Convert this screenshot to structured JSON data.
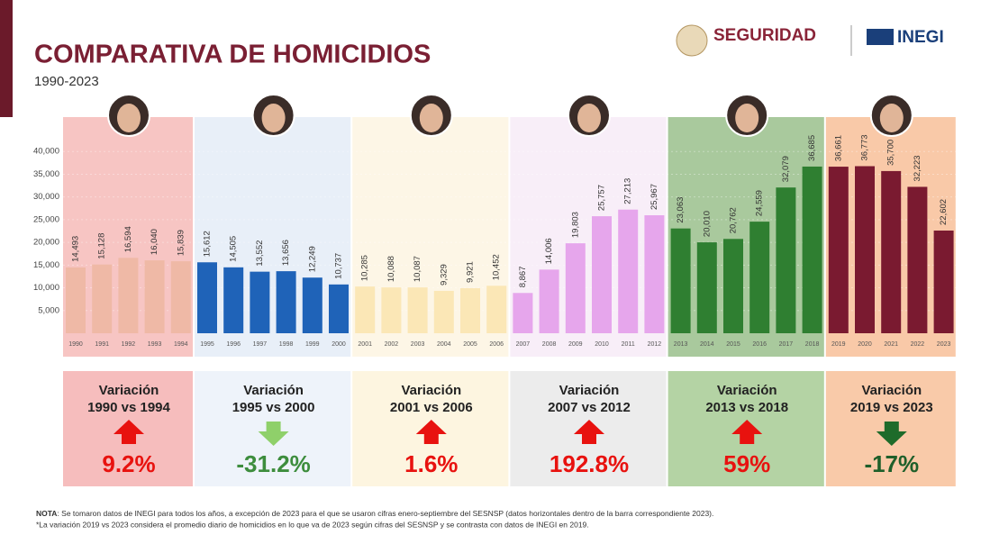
{
  "logos": [
    "SEGURIDAD",
    "INEGI"
  ],
  "chart_data": {
    "type": "bar",
    "title": "COMPARATIVA DE HOMICIDIOS",
    "subtitle": "1990-2023",
    "ylim": [
      0,
      45000
    ],
    "yticks": [
      {
        "value": 5000,
        "label": "5,000"
      },
      {
        "value": 10000,
        "label": "10,000"
      },
      {
        "value": 15000,
        "label": "15,000"
      },
      {
        "value": 20000,
        "label": "20,000"
      },
      {
        "value": 25000,
        "label": "25,000"
      },
      {
        "value": 30000,
        "label": "30,000"
      },
      {
        "value": 35000,
        "label": "35,000"
      },
      {
        "value": 40000,
        "label": "40,000"
      }
    ],
    "grid": true,
    "groups": [
      {
        "categories": [
          "1990",
          "1991",
          "1992",
          "1993",
          "1994"
        ],
        "values": [
          14493,
          15128,
          16594,
          16040,
          15839
        ],
        "value_labels": [
          "14,493",
          "15,128",
          "16,594",
          "16,040",
          "15,839"
        ],
        "color": "#efb9a6",
        "band_color": "#f7c5c3",
        "variation": {
          "title": "Variación",
          "range": "1990 vs 1994",
          "value": 9.2,
          "label": "9.2%",
          "arrow_color": "#e8120f",
          "text_color": "#e8120f",
          "box_color": "#f6bdbd"
        }
      },
      {
        "categories": [
          "1995",
          "1996",
          "1997",
          "1998",
          "1999",
          "2000"
        ],
        "values": [
          15612,
          14505,
          13552,
          13656,
          12249,
          10737
        ],
        "value_labels": [
          "15,612",
          "14,505",
          "13,552",
          "13,656",
          "12,249",
          "10,737"
        ],
        "color": "#1f63b8",
        "band_color": "#e8eff8",
        "variation": {
          "title": "Variación",
          "range": "1995 vs 2000",
          "value": -31.2,
          "label": "-31.2%",
          "arrow_color": "#8fd06a",
          "text_color": "#3d8d3d",
          "box_color": "#eef3fa"
        }
      },
      {
        "categories": [
          "2001",
          "2002",
          "2003",
          "2004",
          "2005",
          "2006"
        ],
        "values": [
          10285,
          10088,
          10087,
          9329,
          9921,
          10452
        ],
        "value_labels": [
          "10,285",
          "10,088",
          "10,087",
          "9,329",
          "9,921",
          "10,452"
        ],
        "color": "#fbe7b6",
        "band_color": "#fdf6e6",
        "variation": {
          "title": "Variación",
          "range": "2001 vs 2006",
          "value": 1.6,
          "label": "1.6%",
          "arrow_color": "#e8120f",
          "text_color": "#e8120f",
          "box_color": "#fdf5e0"
        }
      },
      {
        "categories": [
          "2007",
          "2008",
          "2009",
          "2010",
          "2011",
          "2012"
        ],
        "values": [
          8867,
          14006,
          19803,
          25757,
          27213,
          25967
        ],
        "value_labels": [
          "8,867",
          "14,006",
          "19,803",
          "25,757",
          "27,213",
          "25,967"
        ],
        "color": "#e6a6ec",
        "band_color": "#f8eef8",
        "variation": {
          "title": "Variación",
          "range": "2007 vs 2012",
          "value": 192.8,
          "label": "192.8%",
          "arrow_color": "#e8120f",
          "text_color": "#e8120f",
          "box_color": "#ececec"
        }
      },
      {
        "categories": [
          "2013",
          "2014",
          "2015",
          "2016",
          "2017",
          "2018"
        ],
        "values": [
          23063,
          20010,
          20762,
          24559,
          32079,
          36685
        ],
        "value_labels": [
          "23,063",
          "20,010",
          "20,762",
          "24,559",
          "32,079",
          "36,685"
        ],
        "color": "#2f7f31",
        "band_color": "#a9c99d",
        "variation": {
          "title": "Variación",
          "range": "2013 vs 2018",
          "value": 59,
          "label": "59%",
          "arrow_color": "#e8120f",
          "text_color": "#e8120f",
          "box_color": "#b4d3a4"
        }
      },
      {
        "categories": [
          "2019",
          "2020",
          "2021",
          "2022",
          "2023"
        ],
        "values": [
          36661,
          36773,
          35700,
          32223,
          22602
        ],
        "value_labels": [
          "36,661",
          "36,773",
          "35,700",
          "32,223",
          "22,602"
        ],
        "color": "#7a1a30",
        "band_color": "#f9c9a8",
        "variation": {
          "title": "Variación",
          "range": "2019 vs 2023",
          "value": -17,
          "label": "-17%",
          "arrow_color": "#1e6b2a",
          "text_color": "#1e5f2a",
          "box_color": "#f9caa9"
        }
      }
    ]
  },
  "notes": {
    "label": "NOTA",
    "text": ": Se tomaron datos de INEGI para todos los años, a excepción de 2023 para el que se usaron cifras enero-septiembre del SESNSP (datos horizontales dentro de la barra correspondiente 2023).",
    "footnote": "*La variación 2019 vs 2023 considera el promedio diario de homicidios en lo que va de 2023 según cifras del SESNSP y se contrasta con datos de INEGI en 2019."
  }
}
